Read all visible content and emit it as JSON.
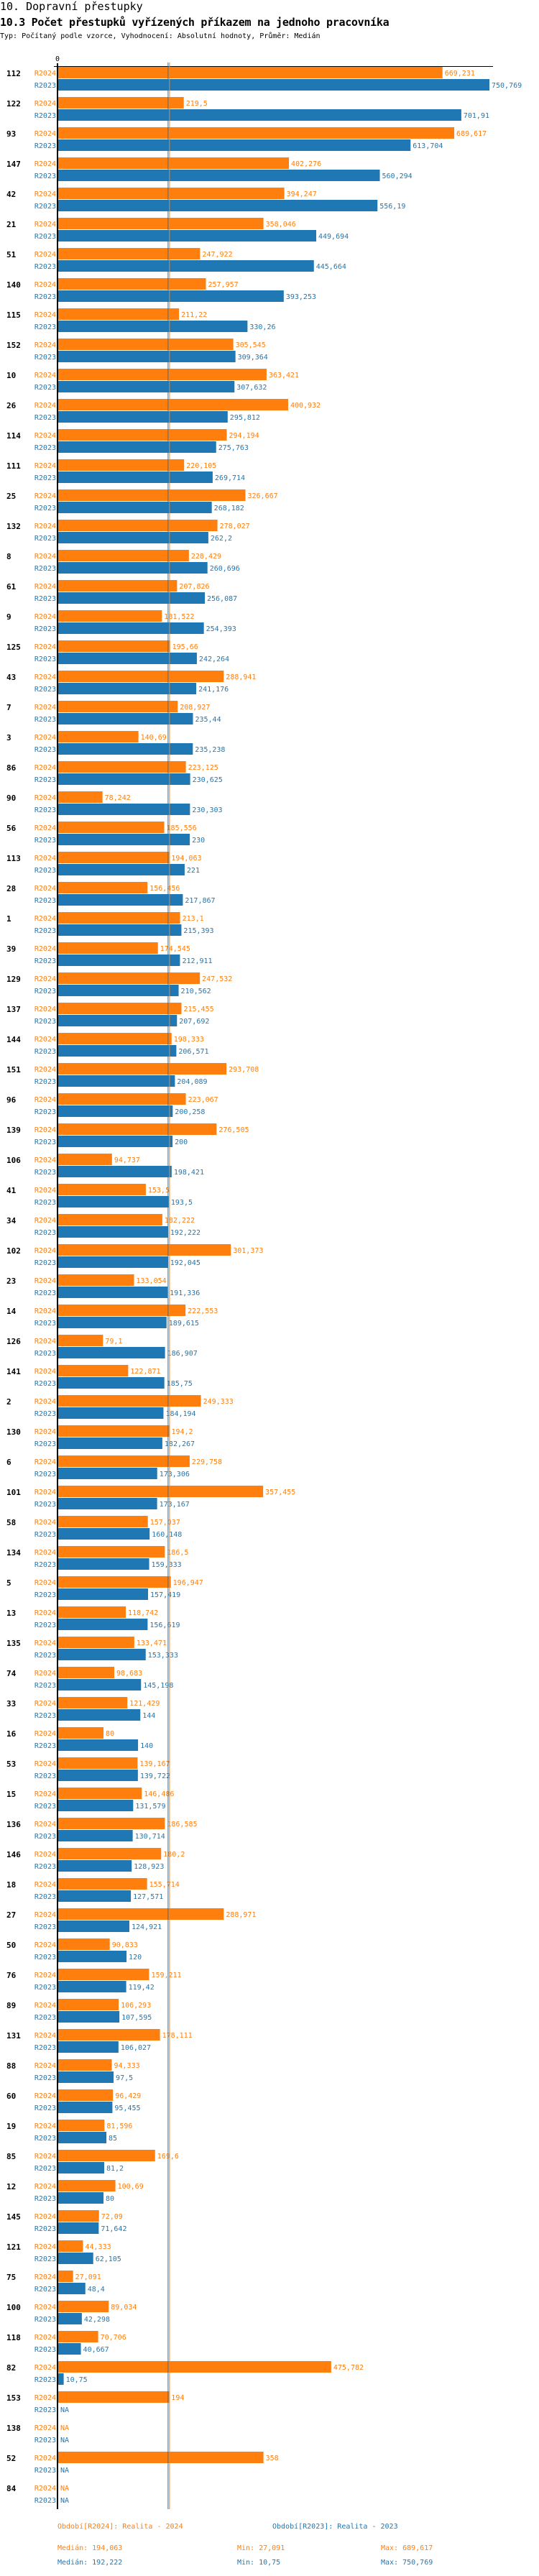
{
  "header": {
    "title": "10. Dopravní přestupky",
    "subtitle": "10.3 Počet přestupků vyřízených příkazem na jednoho pracovníka",
    "description": "Typ: Počítaný podle vzorce, Vyhodnocení: Absolutní hodnoty, Průměr: Medián"
  },
  "chart_data": {
    "type": "bar",
    "orientation": "horizontal",
    "x_tick_labels": [
      "0"
    ],
    "xlim": [
      0,
      750.769
    ],
    "grid": false,
    "legend_position": "bottom",
    "decimal_separator": ",",
    "na_label": "NA",
    "series": [
      {
        "key": "R2024",
        "name": "Období[R2024]: Realita - 2024",
        "color": "#ff7f0e"
      },
      {
        "key": "R2023",
        "name": "Období[R2023]: Realita - 2023",
        "color": "#1f77b4"
      }
    ],
    "categories": [
      "112",
      "122",
      "93",
      "147",
      "42",
      "21",
      "51",
      "140",
      "115",
      "152",
      "10",
      "26",
      "114",
      "111",
      "25",
      "132",
      "8",
      "61",
      "9",
      "125",
      "43",
      "7",
      "3",
      "86",
      "90",
      "56",
      "113",
      "28",
      "1",
      "39",
      "129",
      "137",
      "144",
      "151",
      "96",
      "139",
      "106",
      "41",
      "34",
      "102",
      "23",
      "14",
      "126",
      "141",
      "2",
      "130",
      "6",
      "101",
      "58",
      "134",
      "5",
      "13",
      "135",
      "74",
      "33",
      "16",
      "53",
      "15",
      "136",
      "146",
      "18",
      "27",
      "50",
      "76",
      "89",
      "131",
      "88",
      "60",
      "19",
      "85",
      "12",
      "145",
      "121",
      "75",
      "100",
      "118",
      "82",
      "153",
      "138",
      "52",
      "84"
    ],
    "values_R2024": [
      669.231,
      219.5,
      689.617,
      402.276,
      394.247,
      358.046,
      247.922,
      257.957,
      211.22,
      305.545,
      363.421,
      400.932,
      294.194,
      220.105,
      326.667,
      278.027,
      228.429,
      207.826,
      181.522,
      195.66,
      288.941,
      208.927,
      140.69,
      223.125,
      78.242,
      185.556,
      194.063,
      156.456,
      213.1,
      174.545,
      247.532,
      215.455,
      198.333,
      293.708,
      223.067,
      276.505,
      94.737,
      153.5,
      182.222,
      301.373,
      133.054,
      222.553,
      79.1,
      122.871,
      249.333,
      194.2,
      229.758,
      357.455,
      157.037,
      186.5,
      196.947,
      118.742,
      133.471,
      98.683,
      121.429,
      80,
      139.167,
      146.486,
      186.585,
      180.2,
      155.714,
      288.971,
      90.833,
      159.211,
      106.293,
      178.111,
      94.333,
      96.429,
      81.596,
      169.6,
      100.69,
      72.09,
      44.333,
      27.091,
      89.034,
      70.706,
      475.782,
      194,
      null,
      358,
      null
    ],
    "values_R2023": [
      750.769,
      701.91,
      613.704,
      560.294,
      556.19,
      449.694,
      445.664,
      393.253,
      330.26,
      309.364,
      307.632,
      295.812,
      275.763,
      269.714,
      268.182,
      262.2,
      260.696,
      256.087,
      254.393,
      242.264,
      241.176,
      235.44,
      235.238,
      230.625,
      230.303,
      230,
      221,
      217.867,
      215.393,
      212.911,
      210.562,
      207.692,
      206.571,
      204.089,
      200.258,
      200,
      198.421,
      193.5,
      192.222,
      192.045,
      191.336,
      189.615,
      186.907,
      185.75,
      184.194,
      182.267,
      173.306,
      173.167,
      160.148,
      159.333,
      157.419,
      156.619,
      153.333,
      145.198,
      144,
      140,
      139.722,
      131.579,
      130.714,
      128.923,
      127.571,
      124.921,
      120,
      119.42,
      107.595,
      106.027,
      97.5,
      95.455,
      85,
      81.2,
      80,
      71.642,
      62.105,
      48.4,
      42.298,
      40.667,
      10.75,
      null,
      null,
      null,
      null
    ],
    "median_lines": {
      "R2024": 194.063,
      "R2023": 192.222
    }
  },
  "legend": {
    "r2024_label": "Období[R2024]: Realita - 2024",
    "r2023_label": "Období[R2023]: Realita - 2023",
    "r2024_median": "Medián: 194,063",
    "r2024_min": "Min: 27,091",
    "r2024_max": "Max: 689,617",
    "r2023_median": "Medián: 192,222",
    "r2023_min": "Min: 10,75",
    "r2023_max": "Max: 750,769"
  }
}
